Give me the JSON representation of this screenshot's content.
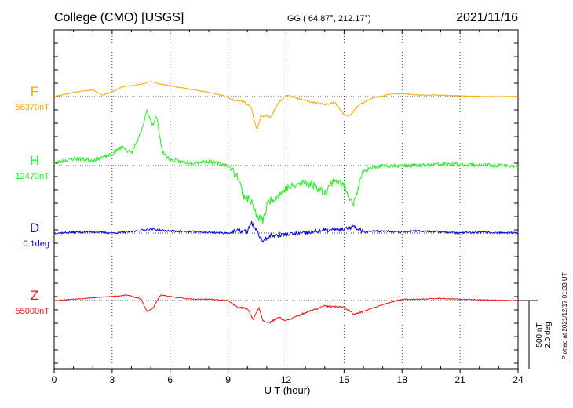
{
  "header": {
    "station": "College (CMO)  [USGS]",
    "coords": "GG ( 64.87°, 212.17°)",
    "date": "2021/11/16"
  },
  "footer": {
    "plotted": "Plotted at 2021/12/17 01:33 UT"
  },
  "scale": {
    "nt": "500 nT",
    "deg": "2.0 deg"
  },
  "chart_data": {
    "type": "line",
    "title": "College (CMO)  [USGS]",
    "xlabel": "U T (hour)",
    "xlim": [
      0,
      24
    ],
    "xticks": [
      "0",
      "3",
      "6",
      "9",
      "12",
      "15",
      "18",
      "21",
      "24"
    ],
    "grid": true,
    "series": [
      {
        "name": "F",
        "baseline": "56370nT",
        "color": "#f5a800",
        "noise": 3,
        "seed": 11,
        "points": [
          [
            0,
            0
          ],
          [
            1,
            30
          ],
          [
            2,
            50
          ],
          [
            2.5,
            10
          ],
          [
            3,
            35
          ],
          [
            3.5,
            70
          ],
          [
            4,
            80
          ],
          [
            4.5,
            90
          ],
          [
            5,
            110
          ],
          [
            5.5,
            90
          ],
          [
            6,
            80
          ],
          [
            7,
            55
          ],
          [
            8,
            30
          ],
          [
            8.8,
            5
          ],
          [
            9.3,
            -30
          ],
          [
            9.8,
            -35
          ],
          [
            10.2,
            -85
          ],
          [
            10.5,
            -250
          ],
          [
            10.7,
            -140
          ],
          [
            11.2,
            -150
          ],
          [
            11.6,
            -50
          ],
          [
            12,
            10
          ],
          [
            13,
            -30
          ],
          [
            14,
            -60
          ],
          [
            14.5,
            -40
          ],
          [
            15,
            -130
          ],
          [
            15.3,
            -140
          ],
          [
            15.8,
            -60
          ],
          [
            16.5,
            -10
          ],
          [
            17.5,
            20
          ],
          [
            18,
            20
          ],
          [
            19,
            10
          ],
          [
            20,
            10
          ],
          [
            21,
            5
          ],
          [
            22,
            0
          ],
          [
            24,
            0
          ]
        ]
      },
      {
        "name": "H",
        "baseline": "12470nT",
        "color": "#22ee22",
        "noise": 14,
        "seed": 23,
        "points": [
          [
            0,
            20
          ],
          [
            1,
            50
          ],
          [
            2,
            40
          ],
          [
            2.5,
            60
          ],
          [
            3,
            80
          ],
          [
            3.5,
            140
          ],
          [
            4,
            90
          ],
          [
            4.5,
            240
          ],
          [
            4.8,
            400
          ],
          [
            5.1,
            300
          ],
          [
            5.3,
            360
          ],
          [
            5.6,
            100
          ],
          [
            6,
            40
          ],
          [
            7,
            20
          ],
          [
            8,
            30
          ],
          [
            9,
            0
          ],
          [
            9.5,
            -80
          ],
          [
            9.8,
            -220
          ],
          [
            10.2,
            -260
          ],
          [
            10.5,
            -380
          ],
          [
            10.8,
            -400
          ],
          [
            11.1,
            -260
          ],
          [
            11.6,
            -220
          ],
          [
            12,
            -170
          ],
          [
            13,
            -120
          ],
          [
            13.5,
            -150
          ],
          [
            14,
            -200
          ],
          [
            14.5,
            -100
          ],
          [
            15,
            -150
          ],
          [
            15.5,
            -280
          ],
          [
            16,
            -40
          ],
          [
            17,
            0
          ],
          [
            19,
            0
          ],
          [
            20,
            10
          ],
          [
            22,
            5
          ],
          [
            24,
            -5
          ]
        ]
      },
      {
        "name": "D",
        "baseline": "0.1deg",
        "color": "#0000dd",
        "noise": 7,
        "seed": 37,
        "points": [
          [
            0,
            0
          ],
          [
            2,
            10
          ],
          [
            3,
            0
          ],
          [
            4,
            10
          ],
          [
            4.5,
            20
          ],
          [
            5,
            30
          ],
          [
            5.5,
            20
          ],
          [
            6,
            15
          ],
          [
            7,
            10
          ],
          [
            8,
            5
          ],
          [
            9,
            0
          ],
          [
            9.5,
            15
          ],
          [
            10,
            10
          ],
          [
            10.2,
            80
          ],
          [
            10.4,
            30
          ],
          [
            10.8,
            -60
          ],
          [
            11.2,
            -20
          ],
          [
            12,
            -10
          ],
          [
            13,
            0
          ],
          [
            14,
            20
          ],
          [
            15,
            25
          ],
          [
            15.5,
            50
          ],
          [
            16,
            10
          ],
          [
            17,
            15
          ],
          [
            18,
            10
          ],
          [
            19,
            15
          ],
          [
            20,
            10
          ],
          [
            21,
            0
          ],
          [
            22,
            5
          ],
          [
            24,
            0
          ]
        ]
      },
      {
        "name": "Z",
        "baseline": "55000nT",
        "color": "#ee1111",
        "noise": 3,
        "seed": 53,
        "points": [
          [
            0,
            0
          ],
          [
            1,
            10
          ],
          [
            2,
            20
          ],
          [
            3,
            30
          ],
          [
            3.8,
            40
          ],
          [
            4.5,
            10
          ],
          [
            4.8,
            -80
          ],
          [
            5.1,
            -60
          ],
          [
            5.5,
            40
          ],
          [
            6,
            30
          ],
          [
            7,
            10
          ],
          [
            8,
            10
          ],
          [
            9,
            0
          ],
          [
            9.5,
            -50
          ],
          [
            10,
            -60
          ],
          [
            10.3,
            -140
          ],
          [
            10.6,
            -50
          ],
          [
            10.8,
            -150
          ],
          [
            11.2,
            -160
          ],
          [
            11.6,
            -120
          ],
          [
            12,
            -150
          ],
          [
            13,
            -90
          ],
          [
            14,
            -40
          ],
          [
            15,
            -50
          ],
          [
            15.5,
            -100
          ],
          [
            16,
            -80
          ],
          [
            17,
            -30
          ],
          [
            18,
            10
          ],
          [
            19,
            10
          ],
          [
            20,
            15
          ],
          [
            21,
            10
          ],
          [
            22,
            5
          ],
          [
            24,
            0
          ]
        ]
      }
    ]
  }
}
